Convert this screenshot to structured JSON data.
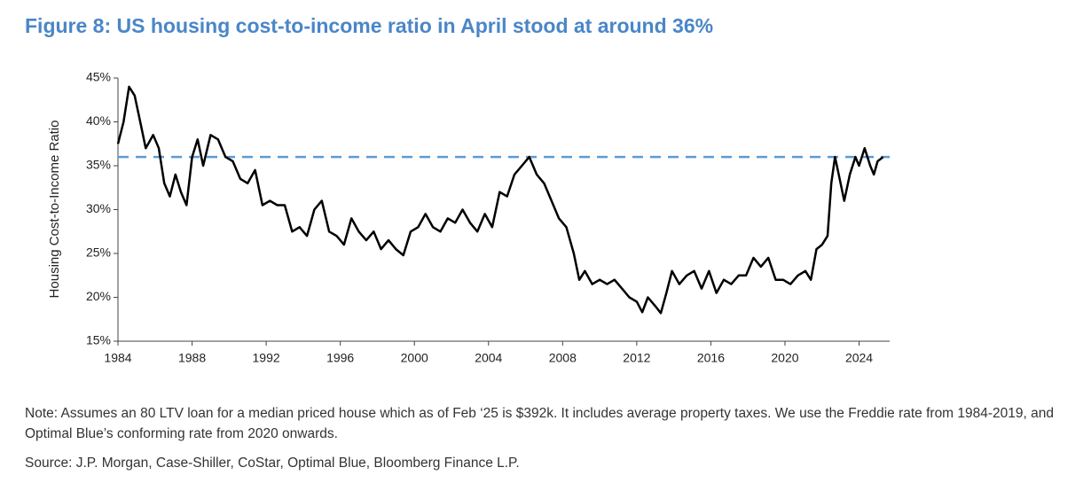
{
  "chart_data": {
    "type": "line",
    "title": "Figure 8: US housing cost-to-income ratio in April stood at around 36%",
    "y_label": "Housing Cost-to-Income Ratio",
    "note": "Note: Assumes an 80 LTV loan for a median priced house which as of Feb ‘25 is $392k. It includes average property taxes. We use the Freddie rate from 1984-2019, and Optimal Blue’s conforming rate from 2020 onwards.",
    "source": "Source: J.P. Morgan, Case-Shiller, CoStar, Optimal Blue, Bloomberg Finance L.P.",
    "color": "#000000",
    "reference_line": 36,
    "reference_color": "#5b9bd5",
    "x": [
      1984.0,
      1984.3,
      1984.6,
      1984.9,
      1985.2,
      1985.5,
      1985.9,
      1986.2,
      1986.5,
      1986.8,
      1987.1,
      1987.4,
      1987.7,
      1988.0,
      1988.3,
      1988.6,
      1989.0,
      1989.4,
      1989.8,
      1990.2,
      1990.6,
      1991.0,
      1991.4,
      1991.8,
      1992.2,
      1992.6,
      1993.0,
      1993.4,
      1993.8,
      1994.2,
      1994.6,
      1995.0,
      1995.4,
      1995.8,
      1996.2,
      1996.6,
      1997.0,
      1997.4,
      1997.8,
      1998.2,
      1998.6,
      1999.0,
      1999.4,
      1999.8,
      2000.2,
      2000.6,
      2001.0,
      2001.4,
      2001.8,
      2002.2,
      2002.6,
      2003.0,
      2003.4,
      2003.8,
      2004.2,
      2004.6,
      2005.0,
      2005.4,
      2005.8,
      2006.2,
      2006.6,
      2007.0,
      2007.4,
      2007.8,
      2008.2,
      2008.6,
      2008.9,
      2009.2,
      2009.6,
      2010.0,
      2010.4,
      2010.8,
      2011.2,
      2011.6,
      2012.0,
      2012.3,
      2012.6,
      2013.0,
      2013.3,
      2013.6,
      2013.9,
      2014.3,
      2014.7,
      2015.1,
      2015.5,
      2015.9,
      2016.3,
      2016.7,
      2017.1,
      2017.5,
      2017.9,
      2018.3,
      2018.7,
      2019.1,
      2019.5,
      2019.9,
      2020.3,
      2020.7,
      2021.1,
      2021.4,
      2021.7,
      2022.0,
      2022.3,
      2022.5,
      2022.7,
      2022.9,
      2023.2,
      2023.5,
      2023.8,
      2024.0,
      2024.3,
      2024.6,
      2024.8,
      2025.0,
      2025.3
    ],
    "values": [
      37.5,
      40,
      44,
      43,
      40,
      37,
      38.5,
      37,
      33,
      31.5,
      34,
      32,
      30.5,
      36,
      38,
      35,
      38.5,
      38,
      36,
      35.5,
      33.5,
      33,
      34.5,
      30.5,
      31,
      30.5,
      30.5,
      27.5,
      28,
      27,
      30,
      31,
      27.5,
      27,
      26,
      29,
      27.5,
      26.5,
      27.5,
      25.5,
      26.5,
      25.5,
      24.8,
      27.5,
      28,
      29.5,
      28,
      27.5,
      29,
      28.5,
      30,
      28.5,
      27.5,
      29.5,
      28,
      32,
      31.5,
      34,
      35,
      36,
      34,
      33,
      31,
      29,
      28,
      25,
      22,
      23,
      21.5,
      22,
      21.5,
      22,
      21,
      20,
      19.5,
      18.3,
      20,
      19,
      18.2,
      20.5,
      23,
      21.5,
      22.5,
      23,
      21,
      23,
      20.5,
      22,
      21.5,
      22.5,
      22.5,
      24.5,
      23.5,
      24.5,
      22,
      22,
      21.5,
      22.5,
      23,
      22,
      25.5,
      26,
      27,
      33,
      36,
      34,
      31,
      34,
      36,
      35,
      37,
      35,
      34,
      35.5,
      36
    ],
    "xlim": [
      1984,
      2025.65
    ],
    "xticks": [
      1984,
      1988,
      1992,
      1996,
      2000,
      2004,
      2008,
      2012,
      2016,
      2020,
      2024
    ],
    "ylim": [
      15,
      45
    ],
    "yticks": [
      {
        "value": 15,
        "label": "15%"
      },
      {
        "value": 20,
        "label": "20%"
      },
      {
        "value": 25,
        "label": "25%"
      },
      {
        "value": 30,
        "label": "30%"
      },
      {
        "value": 35,
        "label": "35%"
      },
      {
        "value": 40,
        "label": "40%"
      },
      {
        "value": 45,
        "label": "45%"
      }
    ],
    "title_color": "#4a86c8"
  }
}
